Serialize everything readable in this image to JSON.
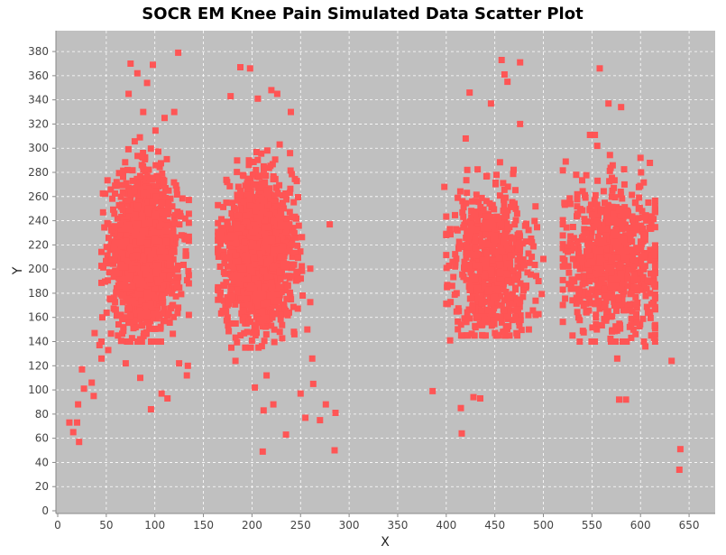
{
  "chart_data": {
    "type": "scatter",
    "title": "SOCR EM Knee Pain Simulated Data Scatter Plot",
    "xlabel": "X",
    "ylabel": "Y",
    "xlim": [
      0,
      675
    ],
    "ylim": [
      0,
      395
    ],
    "xticks": [
      0,
      50,
      100,
      150,
      200,
      250,
      300,
      350,
      400,
      450,
      500,
      550,
      600,
      650
    ],
    "yticks": [
      0,
      20,
      40,
      60,
      80,
      100,
      120,
      140,
      160,
      180,
      200,
      220,
      240,
      260,
      280,
      300,
      320,
      340,
      360,
      380
    ],
    "grid": true,
    "legend": "none",
    "colors": {
      "background": "#c0c0c0",
      "point": "#ff5555",
      "grid": "#ffffff"
    },
    "clusters": [
      {
        "x_center": 90,
        "x_sd": 16,
        "y_center": 215,
        "y_sd": 30,
        "count": 1700,
        "x_range": [
          45,
          135
        ],
        "y_range": [
          160,
          275
        ]
      },
      {
        "x_center": 207,
        "x_sd": 17,
        "y_center": 213,
        "y_sd": 30,
        "count": 1600,
        "x_range": [
          165,
          260
        ],
        "y_range": [
          155,
          275
        ]
      },
      {
        "x_center": 447,
        "x_sd": 20,
        "y_center": 205,
        "y_sd": 28,
        "count": 700,
        "x_range": [
          400,
          500
        ],
        "y_range": [
          165,
          270
        ]
      },
      {
        "x_center": 572,
        "x_sd": 25,
        "y_center": 208,
        "y_sd": 30,
        "count": 750,
        "x_range": [
          520,
          615
        ],
        "y_range": [
          160,
          280
        ]
      }
    ],
    "points": [
      {
        "x": 12,
        "y": 73
      },
      {
        "x": 16,
        "y": 65
      },
      {
        "x": 20,
        "y": 73
      },
      {
        "x": 21,
        "y": 88
      },
      {
        "x": 22,
        "y": 57
      },
      {
        "x": 25,
        "y": 117
      },
      {
        "x": 27,
        "y": 101
      },
      {
        "x": 35,
        "y": 106
      },
      {
        "x": 37,
        "y": 95
      },
      {
        "x": 38,
        "y": 147
      },
      {
        "x": 43,
        "y": 137
      },
      {
        "x": 45,
        "y": 126
      },
      {
        "x": 46,
        "y": 160
      },
      {
        "x": 52,
        "y": 133
      },
      {
        "x": 62,
        "y": 145
      },
      {
        "x": 70,
        "y": 122
      },
      {
        "x": 73,
        "y": 345
      },
      {
        "x": 75,
        "y": 370
      },
      {
        "x": 82,
        "y": 362
      },
      {
        "x": 85,
        "y": 110
      },
      {
        "x": 88,
        "y": 330
      },
      {
        "x": 92,
        "y": 354
      },
      {
        "x": 96,
        "y": 84
      },
      {
        "x": 98,
        "y": 369
      },
      {
        "x": 107,
        "y": 97
      },
      {
        "x": 110,
        "y": 325
      },
      {
        "x": 113,
        "y": 93
      },
      {
        "x": 120,
        "y": 330
      },
      {
        "x": 124,
        "y": 379
      },
      {
        "x": 125,
        "y": 122
      },
      {
        "x": 133,
        "y": 112
      },
      {
        "x": 134,
        "y": 120
      },
      {
        "x": 135,
        "y": 162
      },
      {
        "x": 178,
        "y": 343
      },
      {
        "x": 183,
        "y": 124
      },
      {
        "x": 188,
        "y": 367
      },
      {
        "x": 198,
        "y": 366
      },
      {
        "x": 203,
        "y": 102
      },
      {
        "x": 206,
        "y": 341
      },
      {
        "x": 211,
        "y": 49
      },
      {
        "x": 212,
        "y": 83
      },
      {
        "x": 215,
        "y": 112
      },
      {
        "x": 220,
        "y": 348
      },
      {
        "x": 222,
        "y": 88
      },
      {
        "x": 226,
        "y": 345
      },
      {
        "x": 235,
        "y": 63
      },
      {
        "x": 240,
        "y": 330
      },
      {
        "x": 250,
        "y": 97
      },
      {
        "x": 255,
        "y": 77
      },
      {
        "x": 257,
        "y": 150
      },
      {
        "x": 262,
        "y": 126
      },
      {
        "x": 263,
        "y": 105
      },
      {
        "x": 270,
        "y": 75
      },
      {
        "x": 276,
        "y": 88
      },
      {
        "x": 280,
        "y": 237
      },
      {
        "x": 285,
        "y": 50
      },
      {
        "x": 286,
        "y": 81
      },
      {
        "x": 386,
        "y": 99
      },
      {
        "x": 398,
        "y": 268
      },
      {
        "x": 404,
        "y": 141
      },
      {
        "x": 415,
        "y": 85
      },
      {
        "x": 416,
        "y": 64
      },
      {
        "x": 420,
        "y": 308
      },
      {
        "x": 424,
        "y": 346
      },
      {
        "x": 428,
        "y": 94
      },
      {
        "x": 435,
        "y": 93
      },
      {
        "x": 446,
        "y": 337
      },
      {
        "x": 457,
        "y": 373
      },
      {
        "x": 460,
        "y": 361
      },
      {
        "x": 463,
        "y": 355
      },
      {
        "x": 476,
        "y": 371
      },
      {
        "x": 476,
        "y": 320
      },
      {
        "x": 485,
        "y": 150
      },
      {
        "x": 492,
        "y": 162
      },
      {
        "x": 495,
        "y": 190
      },
      {
        "x": 523,
        "y": 289
      },
      {
        "x": 530,
        "y": 145
      },
      {
        "x": 548,
        "y": 311
      },
      {
        "x": 553,
        "y": 311
      },
      {
        "x": 555,
        "y": 150
      },
      {
        "x": 558,
        "y": 366
      },
      {
        "x": 567,
        "y": 337
      },
      {
        "x": 576,
        "y": 126
      },
      {
        "x": 578,
        "y": 92
      },
      {
        "x": 580,
        "y": 334
      },
      {
        "x": 585,
        "y": 92
      },
      {
        "x": 600,
        "y": 292
      },
      {
        "x": 605,
        "y": 136
      },
      {
        "x": 611,
        "y": 145
      },
      {
        "x": 614,
        "y": 143
      },
      {
        "x": 632,
        "y": 124
      },
      {
        "x": 640,
        "y": 34
      },
      {
        "x": 641,
        "y": 51
      }
    ]
  }
}
